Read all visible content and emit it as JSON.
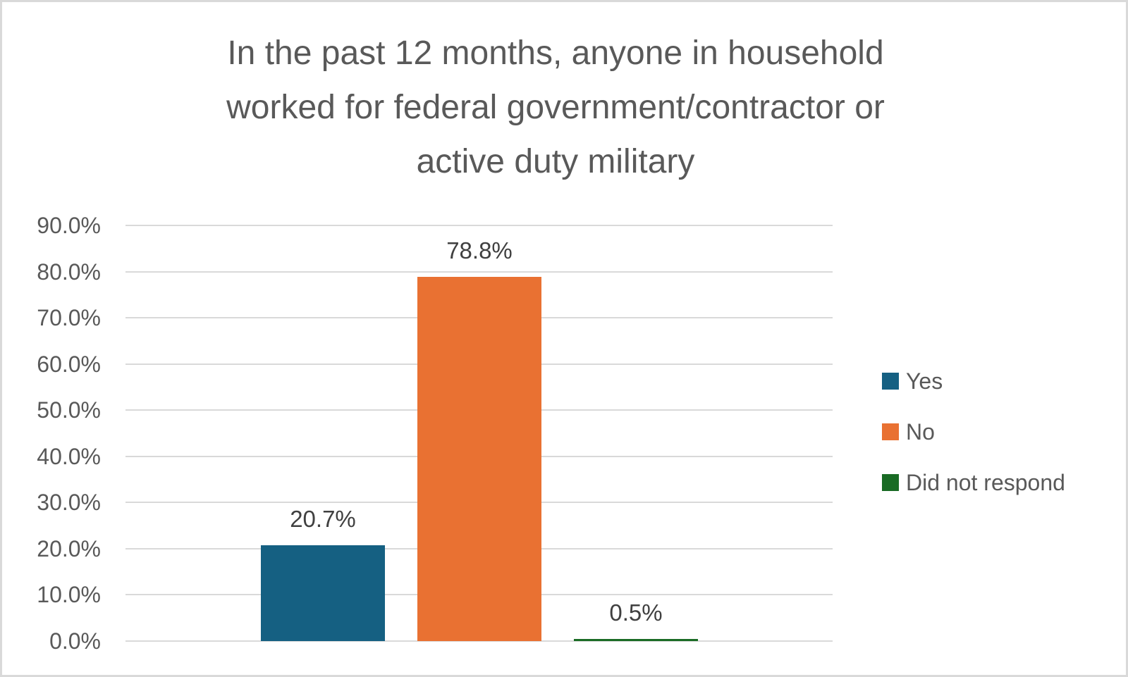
{
  "chart_data": {
    "type": "bar",
    "title": "In the past 12 months, anyone in household worked for federal government/contractor or active duty military",
    "title_lines": [
      "In the past 12 months, anyone in household",
      "worked for federal government/contractor or",
      "active duty military"
    ],
    "categories": [
      "Yes",
      "No",
      "Did not respond"
    ],
    "values": [
      20.7,
      78.8,
      0.5
    ],
    "value_labels": [
      "20.7%",
      "78.8%",
      "0.5%"
    ],
    "series_colors": [
      "#156082",
      "#E97132",
      "#196B24"
    ],
    "xlabel": "",
    "ylabel": "",
    "ylim": [
      0,
      90
    ],
    "y_tick_interval": 10,
    "y_tick_labels": [
      "90.0%",
      "80.0%",
      "70.0%",
      "60.0%",
      "50.0%",
      "40.0%",
      "30.0%",
      "20.0%",
      "10.0%",
      "0.0%"
    ],
    "grid": true,
    "gridline_color": "#D9D9D9",
    "legend": {
      "position": "right",
      "items": [
        {
          "label": "Yes",
          "color": "#156082"
        },
        {
          "label": "No",
          "color": "#E97132"
        },
        {
          "label": "Did not respond",
          "color": "#196B24"
        }
      ]
    },
    "text_colors": {
      "title": "#595959",
      "axis": "#595959",
      "data_label": "#404040",
      "legend": "#595959"
    },
    "frame_border_color": "#D9D9D9",
    "background": "#FFFFFF"
  }
}
